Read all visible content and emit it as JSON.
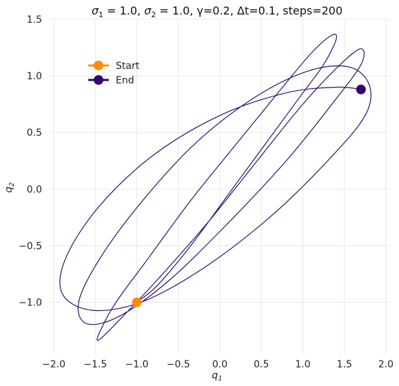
{
  "chart_data": {
    "type": "line",
    "title_parts": {
      "sigma1_label": "σ",
      "sigma1_sub": "1",
      "sigma1_value": " = 1.0, ",
      "sigma2_label": "σ",
      "sigma2_sub": "2",
      "sigma2_value": " = 1.0, γ=0.2, Δt=0.1, steps=200"
    },
    "xlabel": {
      "base": "q",
      "sub": "1"
    },
    "ylabel": {
      "base": "q",
      "sub": "2"
    },
    "xlim": [
      -2.05,
      2.05
    ],
    "ylim": [
      -1.46,
      1.5
    ],
    "xticks": [
      -2.0,
      -1.5,
      -1.0,
      -0.5,
      0.0,
      0.5,
      1.0,
      1.5,
      2.0
    ],
    "xtick_labels": [
      "−2.0",
      "−1.5",
      "−1.0",
      "−0.5",
      "0.0",
      "0.5",
      "1.0",
      "1.5",
      "2.0"
    ],
    "yticks": [
      -1.0,
      -0.5,
      0.0,
      0.5,
      1.0,
      1.5
    ],
    "ytick_labels": [
      "−1.0",
      "−0.5",
      "0.0",
      "0.5",
      "1.0",
      "1.5"
    ],
    "grid": true,
    "legend": {
      "placement": "upper-left",
      "entries": [
        "Start",
        "End"
      ]
    },
    "series": [
      {
        "name": "trajectory",
        "color": "#2b0f6b",
        "q1": [
          -1.0,
          -0.75,
          -0.35,
          0.1,
          0.55,
          0.95,
          1.25,
          1.4,
          1.35,
          1.1,
          0.7,
          0.2,
          -0.35,
          -0.85,
          -1.25,
          -1.45,
          -1.45,
          -1.2,
          -0.75,
          -0.15,
          0.45,
          1.0,
          1.45,
          1.7,
          1.7,
          1.35,
          0.8,
          0.1,
          -0.6,
          -1.2,
          -1.6,
          -1.7,
          -1.45,
          -0.95,
          -0.3,
          0.4,
          1.05,
          1.55,
          1.8,
          1.75,
          1.3,
          0.6,
          -0.2,
          -0.95,
          -1.55,
          -1.9,
          -1.85,
          -1.45,
          -0.8,
          0.0,
          0.8,
          1.4,
          1.7
        ],
        "q2": [
          -1.0,
          -0.85,
          -0.5,
          -0.05,
          0.4,
          0.8,
          1.1,
          1.32,
          1.36,
          1.2,
          0.85,
          0.4,
          -0.1,
          -0.6,
          -1.0,
          -1.27,
          -1.33,
          -1.15,
          -0.8,
          -0.3,
          0.25,
          0.75,
          1.1,
          1.24,
          1.1,
          0.75,
          0.25,
          -0.3,
          -0.8,
          -1.12,
          -1.19,
          -1.0,
          -0.62,
          -0.12,
          0.4,
          0.8,
          1.04,
          1.08,
          0.92,
          0.65,
          0.25,
          -0.25,
          -0.7,
          -1.0,
          -1.07,
          -0.92,
          -0.6,
          -0.15,
          0.3,
          0.65,
          0.85,
          0.9,
          0.88
        ]
      }
    ],
    "markers": [
      {
        "name": "Start",
        "q1": -1.0,
        "q2": -1.0,
        "color": "#ff8c00"
      },
      {
        "name": "End",
        "q1": 1.7,
        "q2": 0.88,
        "color": "#34006b"
      }
    ]
  }
}
